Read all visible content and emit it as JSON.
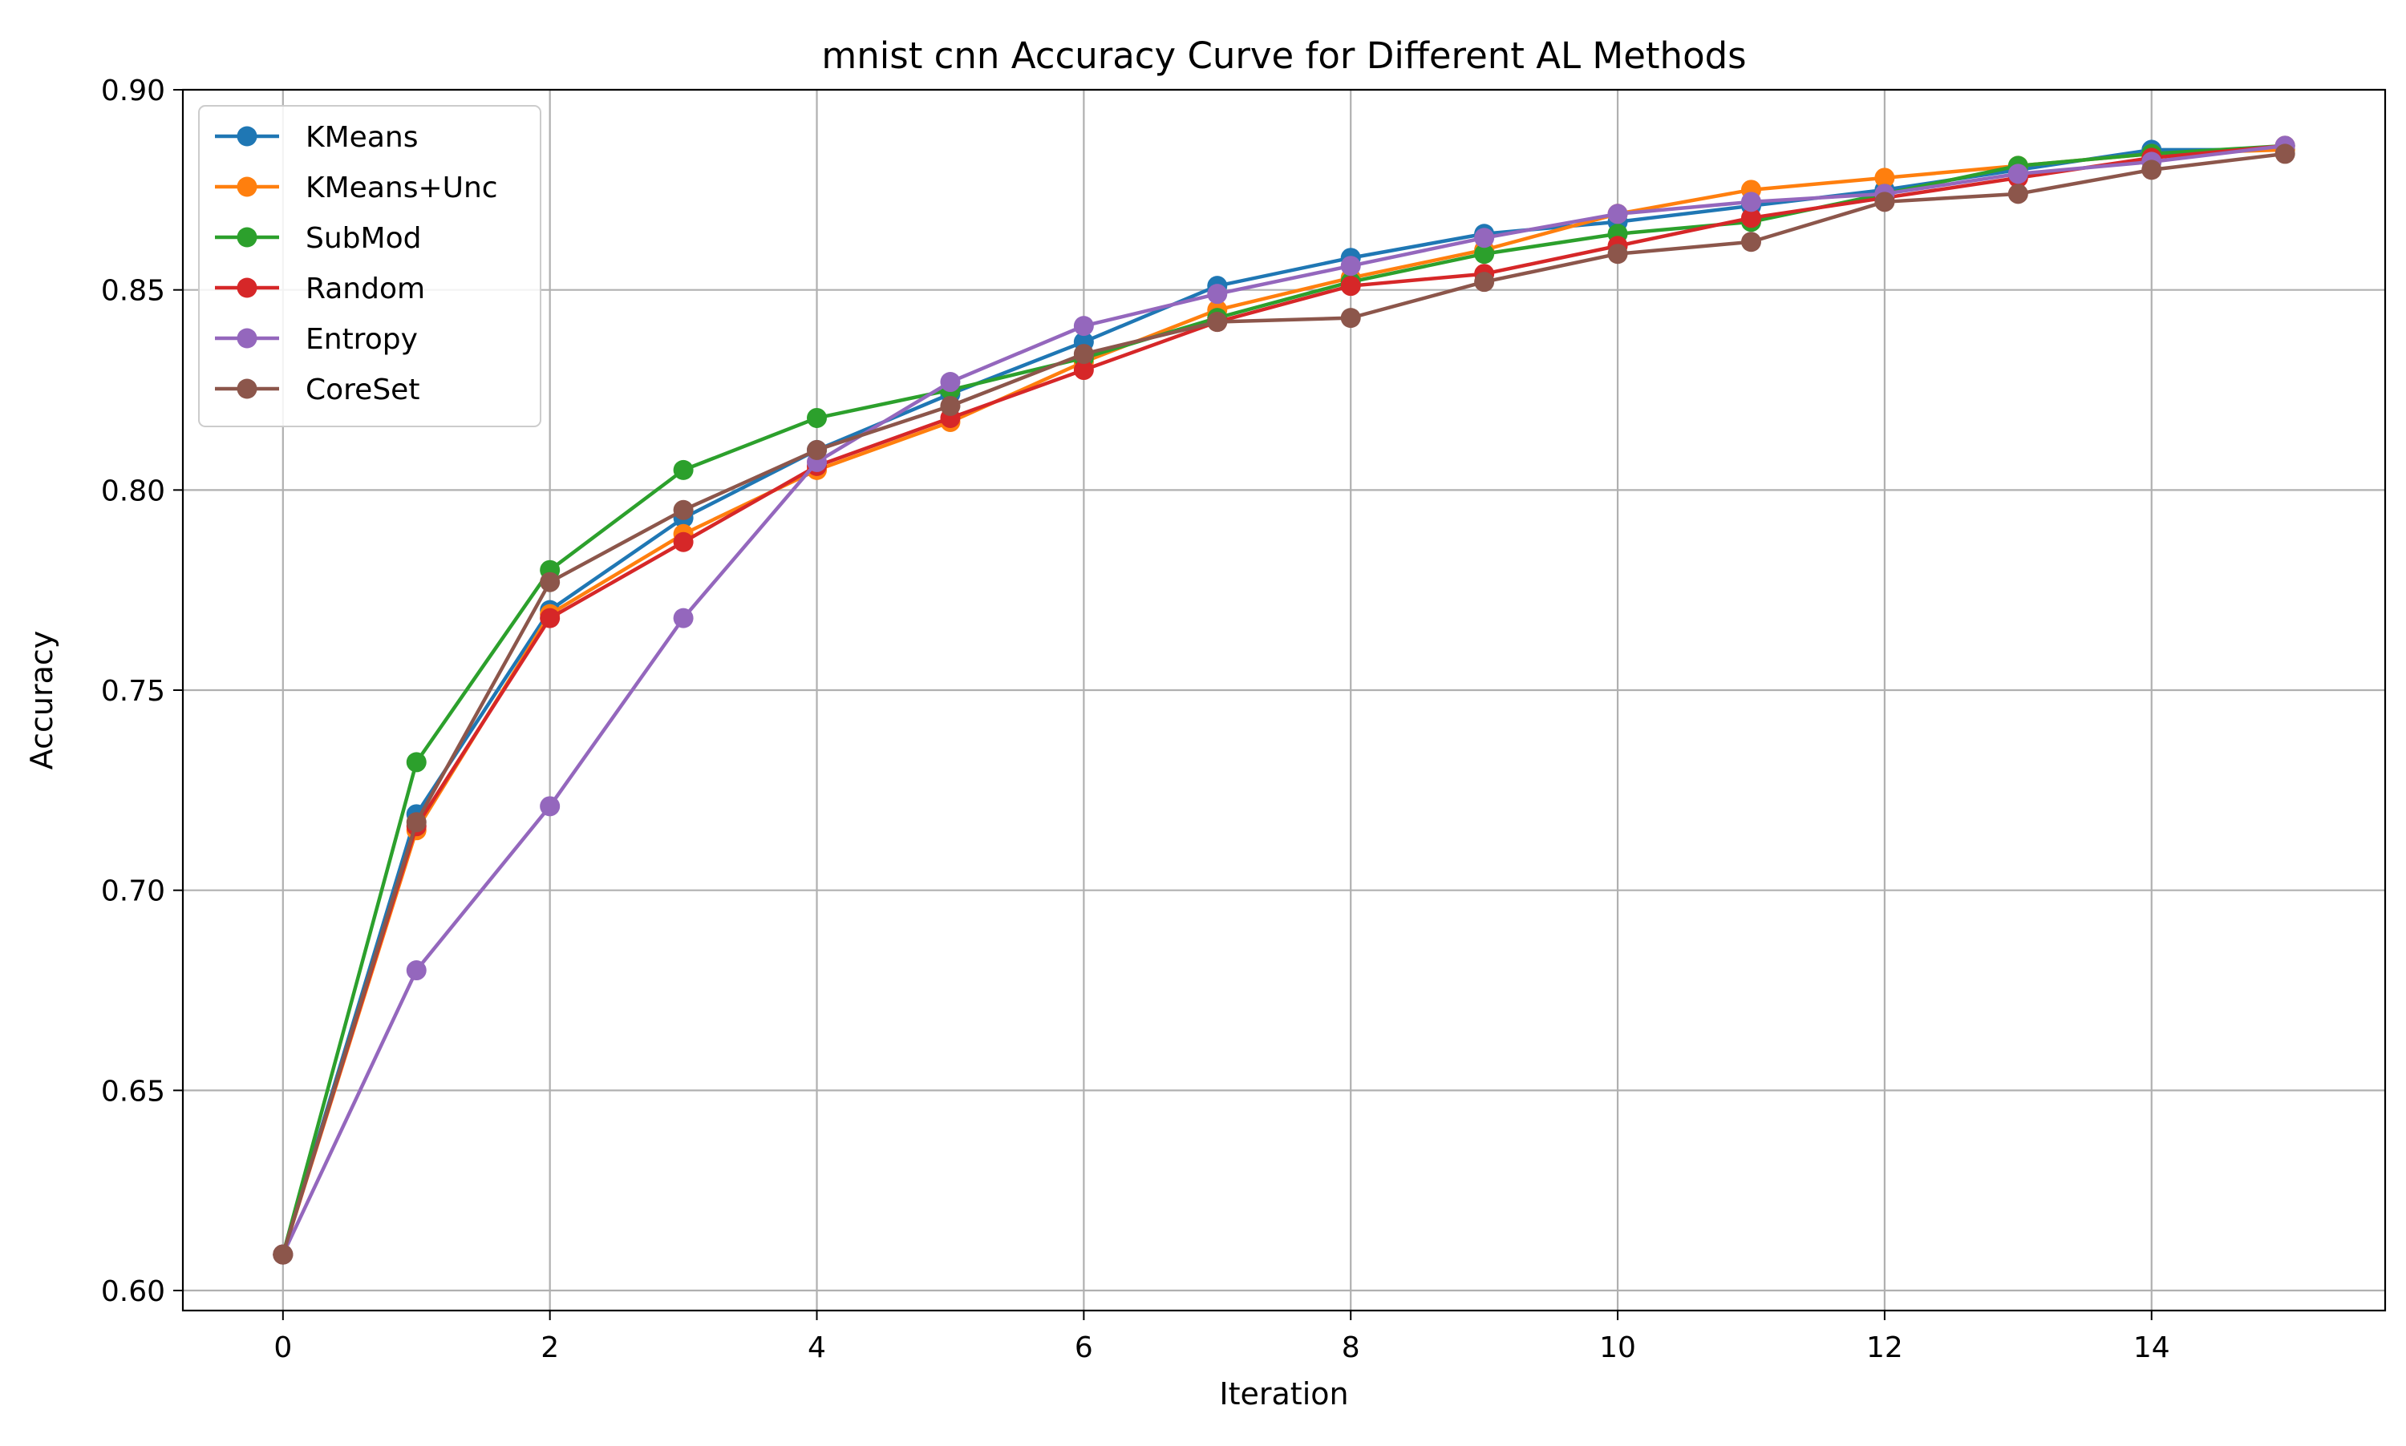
{
  "chart_data": {
    "type": "line",
    "title": "mnist cnn Accuracy Curve for Different AL Methods",
    "xlabel": "Iteration",
    "ylabel": "Accuracy",
    "xlim": [
      -0.75,
      15.75
    ],
    "ylim": [
      0.595,
      0.9
    ],
    "xticks": [
      0,
      2,
      4,
      6,
      8,
      10,
      12,
      14
    ],
    "yticks": [
      0.6,
      0.65,
      0.7,
      0.75,
      0.8,
      0.85,
      0.9
    ],
    "ytick_labels": [
      "0.60",
      "0.65",
      "0.70",
      "0.75",
      "0.80",
      "0.85",
      "0.90"
    ],
    "grid": true,
    "legend_position": "top-left",
    "x": [
      0,
      1,
      2,
      3,
      4,
      5,
      6,
      7,
      8,
      9,
      10,
      11,
      12,
      13,
      14,
      15
    ],
    "series": [
      {
        "name": "KMeans",
        "color": "#1f77b4",
        "values": [
          0.609,
          0.719,
          0.77,
          0.793,
          0.81,
          0.824,
          0.837,
          0.851,
          0.858,
          0.864,
          0.867,
          0.871,
          0.875,
          0.88,
          0.885,
          0.885
        ]
      },
      {
        "name": "KMeans+Unc",
        "color": "#ff7f0e",
        "values": [
          0.609,
          0.715,
          0.769,
          0.789,
          0.805,
          0.817,
          0.832,
          0.845,
          0.853,
          0.86,
          0.869,
          0.875,
          0.878,
          0.881,
          0.884,
          0.885
        ]
      },
      {
        "name": "SubMod",
        "color": "#2ca02c",
        "values": [
          0.609,
          0.732,
          0.78,
          0.805,
          0.818,
          0.825,
          0.833,
          0.843,
          0.852,
          0.859,
          0.864,
          0.867,
          0.874,
          0.881,
          0.884,
          0.886
        ]
      },
      {
        "name": "Random",
        "color": "#d62728",
        "values": [
          0.609,
          0.716,
          0.768,
          0.787,
          0.806,
          0.818,
          0.83,
          0.842,
          0.851,
          0.854,
          0.861,
          0.868,
          0.873,
          0.878,
          0.883,
          0.886
        ]
      },
      {
        "name": "Entropy",
        "color": "#9467bd",
        "values": [
          0.609,
          0.68,
          0.721,
          0.768,
          0.807,
          0.827,
          0.841,
          0.849,
          0.856,
          0.863,
          0.869,
          0.872,
          0.874,
          0.879,
          0.882,
          0.886
        ]
      },
      {
        "name": "CoreSet",
        "color": "#8c564b",
        "values": [
          0.609,
          0.717,
          0.777,
          0.795,
          0.81,
          0.821,
          0.834,
          0.842,
          0.843,
          0.852,
          0.859,
          0.862,
          0.872,
          0.874,
          0.88,
          0.884
        ]
      }
    ]
  }
}
